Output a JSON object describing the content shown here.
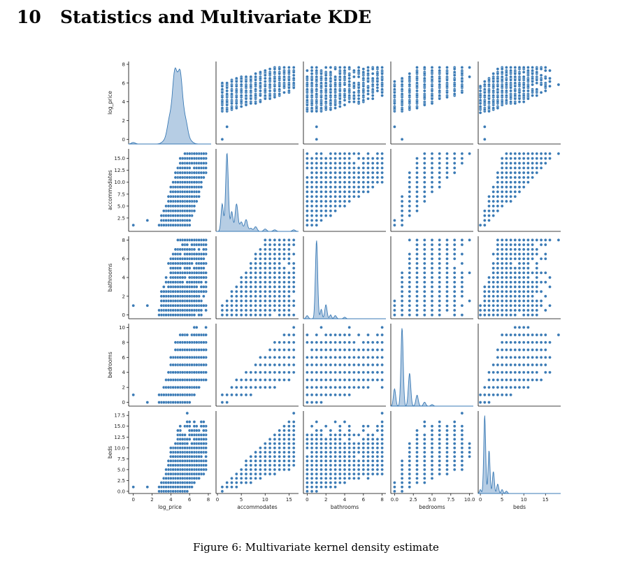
{
  "section": {
    "number": "10",
    "title": "Statistics and Multivariate KDE"
  },
  "figure": {
    "caption": "Figure 6: Multivariate kernel density estimate"
  },
  "chart_data": {
    "type": "scatter",
    "kind": "pairplot",
    "point_color": "#3a7ab5",
    "fill_color": "#a9c4df",
    "variables": [
      {
        "name": "log_price",
        "range": [
          -0.5,
          8.3
        ],
        "ticks": [
          0,
          2,
          4,
          6,
          8
        ],
        "ticklabels": [
          "0",
          "2",
          "4",
          "6",
          "8"
        ]
      },
      {
        "name": "accommodates",
        "range": [
          -0.3,
          17.0
        ],
        "ticks": [
          0,
          5,
          10,
          15
        ],
        "yticks": [
          2.5,
          5.0,
          7.5,
          10.0,
          12.5,
          15.0
        ],
        "ticklabels": [
          "0",
          "5",
          "10",
          "15"
        ],
        "yticklabels": [
          "2.5",
          "5.0",
          "7.5",
          "10.0",
          "12.5",
          "15.0"
        ]
      },
      {
        "name": "bathrooms",
        "range": [
          -0.4,
          8.4
        ],
        "ticks": [
          0,
          2,
          4,
          6,
          8
        ],
        "ticklabels": [
          "0",
          "2",
          "4",
          "6",
          "8"
        ]
      },
      {
        "name": "bedrooms",
        "range": [
          -0.5,
          10.5
        ],
        "ticks": [
          0,
          2.5,
          5.0,
          7.5,
          10.0
        ],
        "yticks": [
          0,
          2,
          4,
          6,
          8,
          10
        ],
        "ticklabels": [
          "0.0",
          "2.5",
          "5.0",
          "7.5",
          "10.0"
        ],
        "yticklabels": [
          "0",
          "2",
          "4",
          "6",
          "8",
          "10"
        ]
      },
      {
        "name": "beds",
        "range": [
          -0.5,
          18.5
        ],
        "ticks": [
          0,
          5,
          10,
          15
        ],
        "yticks": [
          0.0,
          2.5,
          5.0,
          7.5,
          10.0,
          12.5,
          15.0,
          17.5
        ],
        "ticklabels": [
          "0",
          "5",
          "10",
          "15"
        ],
        "yticklabels": [
          "0.0",
          "2.5",
          "5.0",
          "7.5",
          "10.0",
          "12.5",
          "15.0",
          "17.5"
        ]
      }
    ],
    "diagonal": "kde",
    "kde_modes": {
      "log_price": 4.7,
      "accommodates": 2,
      "bathrooms": 1,
      "bedrooms": 1,
      "beds": 1
    }
  }
}
